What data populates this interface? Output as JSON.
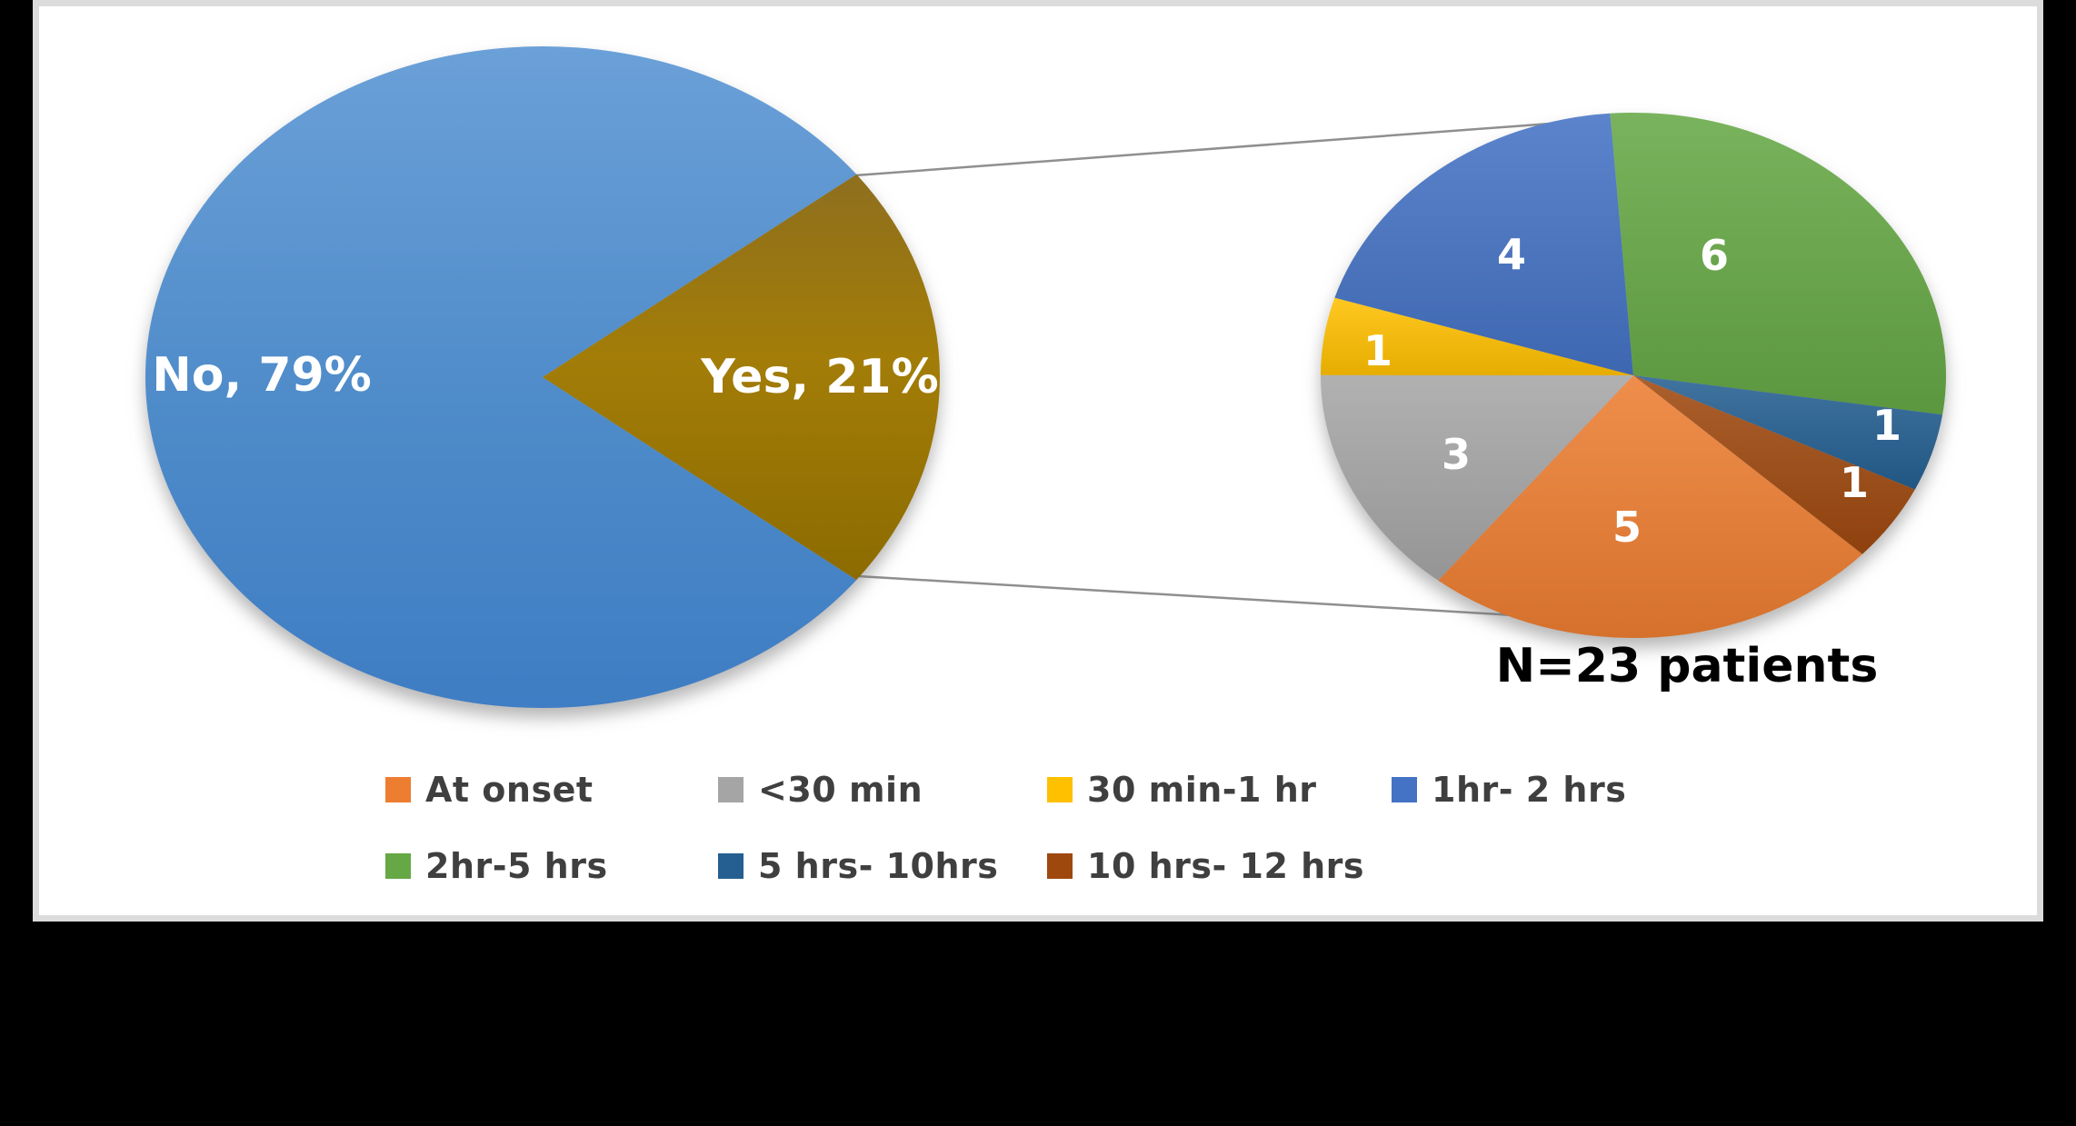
{
  "chart_data": [
    {
      "type": "pie",
      "name": "primary",
      "labels": [
        "No",
        "Yes"
      ],
      "values": [
        79,
        21
      ],
      "unit": "%",
      "display_labels": [
        "No, 79%",
        "Yes, 21%"
      ],
      "colors": [
        "#5190CE",
        "#9C7A06"
      ],
      "label_color": "#FFFFFF"
    },
    {
      "type": "pie",
      "name": "secondary",
      "categories": [
        "At onset",
        "<30 min",
        "30 min-1 hr",
        "1hr- 2 hrs",
        "2hr-5 hrs",
        "5 hrs- 10hrs",
        "10 hrs- 12 hrs"
      ],
      "values": [
        5,
        3,
        1,
        4,
        6,
        1,
        1
      ],
      "colors": [
        "#ED7D31",
        "#A5A5A5",
        "#FFC000",
        "#4472C4",
        "#65A845",
        "#255F91",
        "#9E480E"
      ],
      "annotation": "N=23 patients",
      "start_angle_deg": 132.9,
      "label_color": "#FFFFFF"
    }
  ],
  "legend": {
    "position": "bottom",
    "items": [
      {
        "label": "At onset",
        "color": "#ED7D31"
      },
      {
        "label": "<30 min",
        "color": "#A5A5A5"
      },
      {
        "label": "30 min-1 hr",
        "color": "#FFC000"
      },
      {
        "label": "1hr- 2 hrs",
        "color": "#4472C4"
      },
      {
        "label": "2hr-5 hrs",
        "color": "#65A845"
      },
      {
        "label": "5 hrs- 10hrs",
        "color": "#255F91"
      },
      {
        "label": "10 hrs- 12 hrs",
        "color": "#9E480E"
      }
    ]
  }
}
